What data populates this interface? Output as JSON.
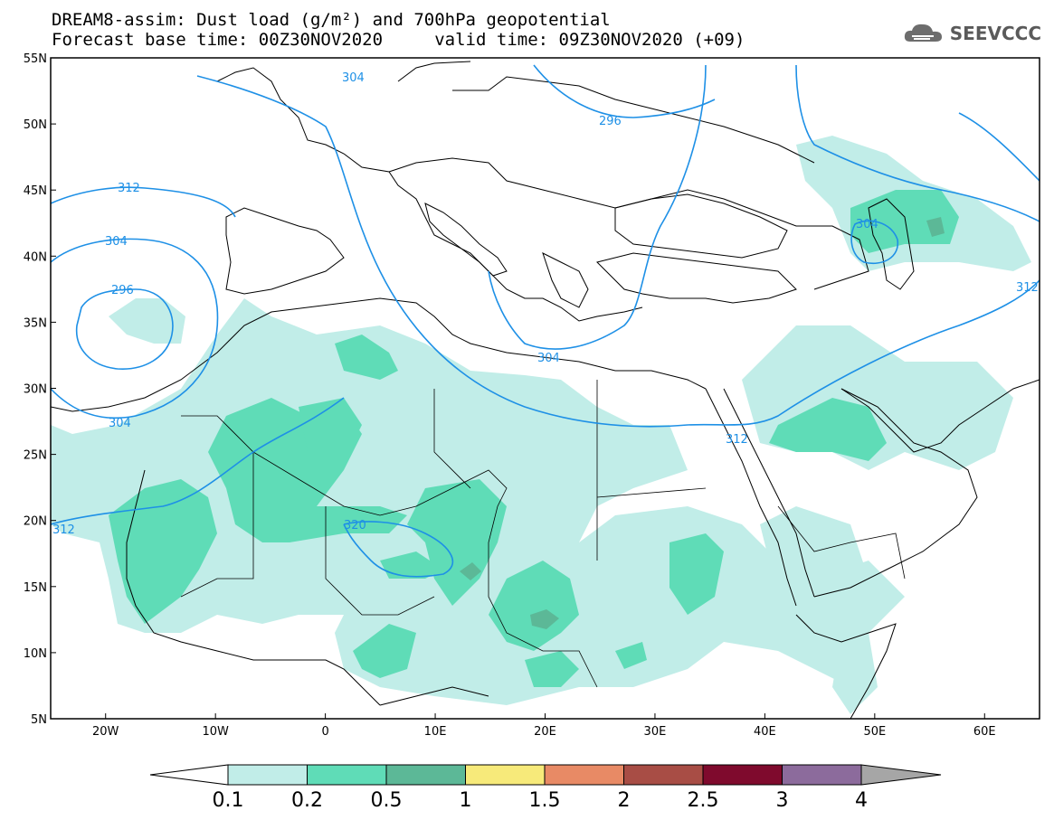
{
  "title": {
    "line1": "DREAM8-assim: Dust load (g/m²) and 700hPa geopotential",
    "line2": "Forecast base time: 00Z30NOV2020     valid time: 09Z30NOV2020 (+09)"
  },
  "logo": {
    "icon": "cloud-icon",
    "text": "SEEVCCC"
  },
  "map": {
    "lon_range": [
      -25,
      65
    ],
    "lat_range": [
      5,
      55
    ],
    "lat_ticks": [
      "55N",
      "50N",
      "45N",
      "40N",
      "35N",
      "30N",
      "25N",
      "20N",
      "15N",
      "10N",
      "5N"
    ],
    "lon_ticks": [
      "20W",
      "10W",
      "0",
      "10E",
      "20E",
      "30E",
      "40E",
      "50E",
      "60E"
    ],
    "contour_labels": [
      "304",
      "296",
      "312",
      "304",
      "296",
      "304",
      "304",
      "312",
      "320",
      "304",
      "312",
      "312"
    ],
    "contour_color": "#1e90e6",
    "coast_color": "#000000"
  },
  "colorbar": {
    "labels": [
      "0.1",
      "0.2",
      "0.5",
      "1",
      "1.5",
      "2",
      "2.5",
      "3",
      "4"
    ],
    "colors": [
      "#c1ede8",
      "#5fdcb7",
      "#5cb897",
      "#f7ea7a",
      "#e88a65",
      "#a84d45",
      "#7f0a2d",
      "#8c6b9c",
      "#a6a6a6"
    ]
  }
}
